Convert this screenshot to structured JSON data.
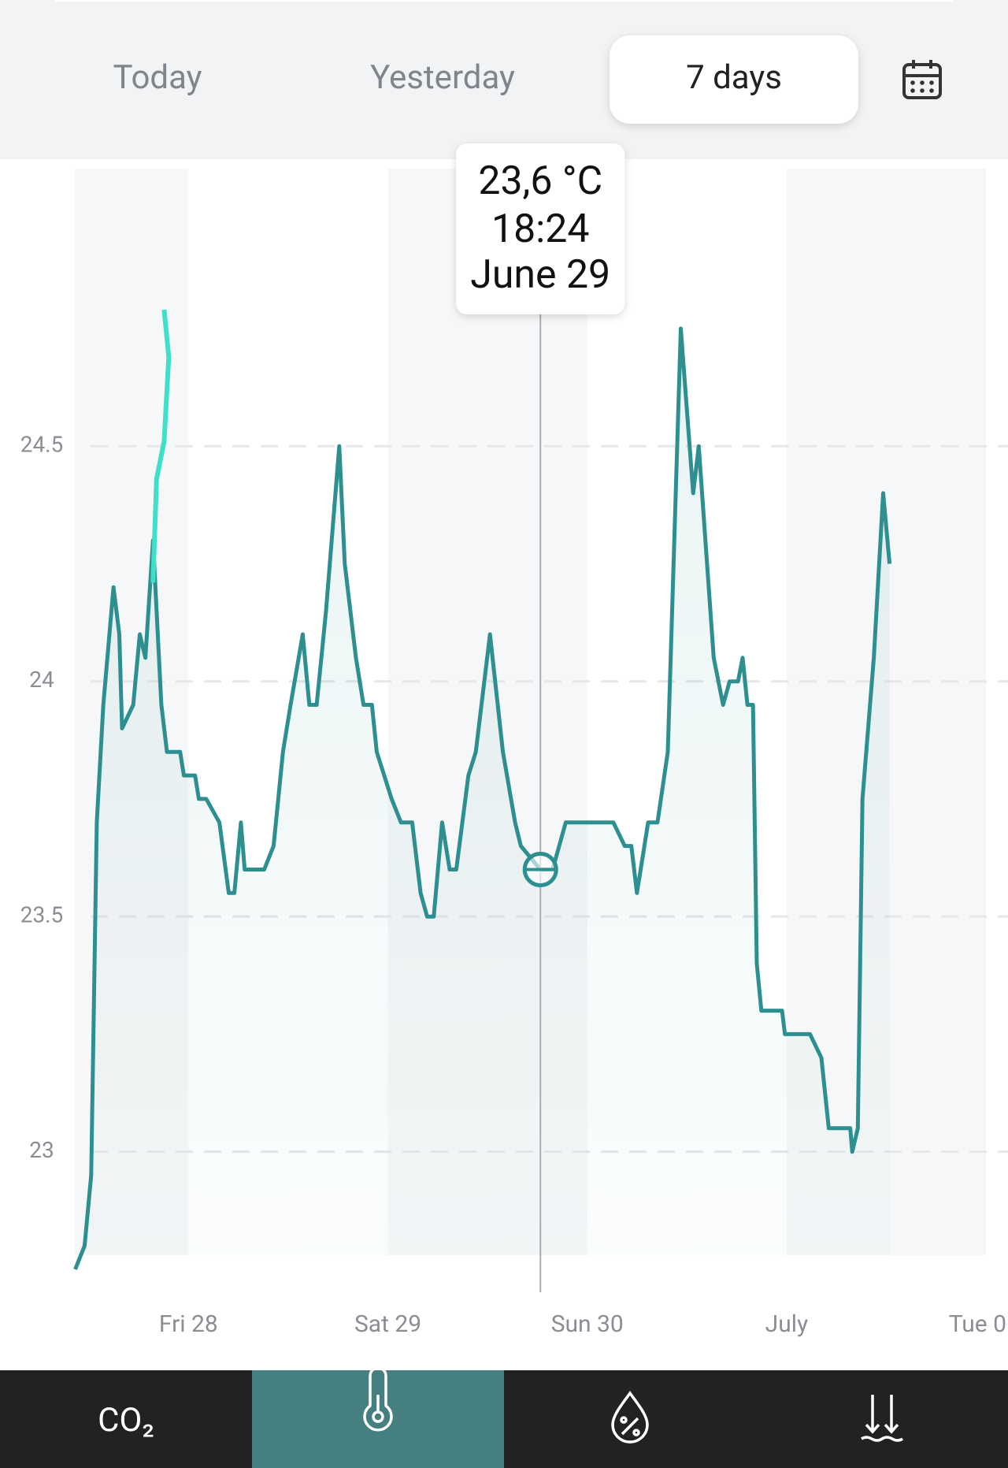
{
  "tabs": [
    {
      "label": "Today"
    },
    {
      "label": "Yesterday"
    },
    {
      "label": "7 days"
    }
  ],
  "nav": [
    {
      "label": "CO₂"
    }
  ],
  "chart_data": {
    "type": "line",
    "xlim": [
      27.43,
      32.11
    ],
    "ylim": [
      22.78,
      25.09
    ],
    "xticks": [
      {
        "value": 28,
        "label": "Fri 28"
      },
      {
        "value": 29,
        "label": "Sat 29"
      },
      {
        "value": 30,
        "label": "Sun 30"
      },
      {
        "value": 31,
        "label": "July"
      },
      {
        "value": 32,
        "label": "Tue 0"
      }
    ],
    "yticks": [
      {
        "value": 23,
        "label": "23"
      },
      {
        "value": 23.5,
        "label": "23.5"
      },
      {
        "value": 24,
        "label": "24"
      },
      {
        "value": 24.5,
        "label": "24.5"
      }
    ],
    "grid": true,
    "series": [
      {
        "color": "#2e8f91",
        "x": [
          27.432,
          27.479,
          27.512,
          27.54,
          27.573,
          27.624,
          27.653,
          27.667,
          27.723,
          27.756,
          27.784,
          27.822,
          27.864,
          27.892,
          27.958,
          27.977,
          28.033,
          28.052,
          28.089,
          28.155,
          28.202,
          28.23,
          28.263,
          28.282,
          28.38,
          28.427,
          28.474,
          28.512,
          28.573,
          28.606,
          28.643,
          28.69,
          28.756,
          28.784,
          28.84,
          28.878,
          28.92,
          28.944,
          29.019,
          29.066,
          29.122,
          29.164,
          29.197,
          29.23,
          29.272,
          29.31,
          29.343,
          29.404,
          29.441,
          29.512,
          29.577,
          29.638,
          29.667,
          29.765,
          29.826,
          29.892,
          29.939,
          30.131,
          30.188,
          30.221,
          30.249,
          30.305,
          30.352,
          30.404,
          30.469,
          30.531,
          30.559,
          30.634,
          30.681,
          30.714,
          30.756,
          30.779,
          30.803,
          30.831,
          30.85,
          30.873,
          30.977,
          30.991,
          31.117,
          31.174,
          31.211,
          31.319,
          31.329,
          31.357,
          31.38,
          31.437,
          31.484,
          31.516
        ],
        "values": [
          22.75,
          22.8,
          22.95,
          23.7,
          23.95,
          24.2,
          24.1,
          23.9,
          23.95,
          24.1,
          24.05,
          24.3,
          23.95,
          23.85,
          23.85,
          23.8,
          23.8,
          23.75,
          23.75,
          23.7,
          23.55,
          23.55,
          23.7,
          23.6,
          23.6,
          23.65,
          23.85,
          23.95,
          24.1,
          23.95,
          23.95,
          24.15,
          24.5,
          24.25,
          24.05,
          23.95,
          23.95,
          23.85,
          23.75,
          23.7,
          23.7,
          23.55,
          23.5,
          23.5,
          23.7,
          23.6,
          23.6,
          23.8,
          23.85,
          24.1,
          23.85,
          23.7,
          23.65,
          23.6,
          23.6,
          23.7,
          23.7,
          23.7,
          23.65,
          23.65,
          23.55,
          23.7,
          23.7,
          23.85,
          24.75,
          24.4,
          24.5,
          24.05,
          23.95,
          24.0,
          24.0,
          24.05,
          23.95,
          23.95,
          23.4,
          23.3,
          23.3,
          23.25,
          23.25,
          23.2,
          23.05,
          23.05,
          23.0,
          23.05,
          23.75,
          24.05,
          24.4,
          24.25
        ]
      },
      {
        "color": "#3fe0c8",
        "x": [
          27.822,
          27.84,
          27.878,
          27.901,
          27.878
        ],
        "values": [
          24.21,
          24.43,
          24.51,
          24.69,
          24.79
        ]
      }
    ],
    "tooltip": {
      "value": "23,6 °C",
      "time": "18:24",
      "date": "June 29",
      "x": 29.765,
      "y": 23.6
    }
  }
}
